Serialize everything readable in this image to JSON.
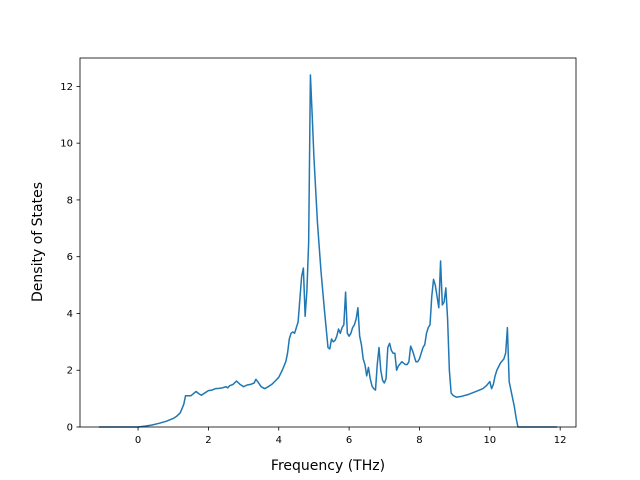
{
  "chart_data": {
    "type": "line",
    "title": "",
    "xlabel": "Frequency (THz)",
    "ylabel": "Density of States",
    "xlim": [
      -1.65,
      12.45
    ],
    "ylim": [
      0,
      13
    ],
    "xticks": [
      0,
      2,
      4,
      6,
      8,
      10,
      12
    ],
    "yticks": [
      0,
      2,
      4,
      6,
      8,
      10,
      12
    ],
    "grid": false,
    "legend": "none",
    "line_color": "#1f77b4",
    "series": [
      {
        "name": "",
        "x": [
          -1.1,
          -0.5,
          0.0,
          0.2,
          0.4,
          0.6,
          0.8,
          1.0,
          1.1,
          1.2,
          1.3,
          1.35,
          1.42,
          1.5,
          1.6,
          1.65,
          1.72,
          1.8,
          1.9,
          2.0,
          2.1,
          2.2,
          2.3,
          2.4,
          2.45,
          2.5,
          2.55,
          2.6,
          2.7,
          2.8,
          2.9,
          3.0,
          3.1,
          3.2,
          3.3,
          3.35,
          3.4,
          3.5,
          3.6,
          3.7,
          3.8,
          3.9,
          4.0,
          4.1,
          4.2,
          4.25,
          4.3,
          4.35,
          4.4,
          4.45,
          4.5,
          4.55,
          4.6,
          4.65,
          4.7,
          4.75,
          4.8,
          4.85,
          4.9,
          4.95,
          5.0,
          5.1,
          5.2,
          5.3,
          5.4,
          5.45,
          5.5,
          5.55,
          5.6,
          5.65,
          5.7,
          5.75,
          5.8,
          5.85,
          5.9,
          5.95,
          6.0,
          6.05,
          6.1,
          6.15,
          6.2,
          6.25,
          6.3,
          6.35,
          6.4,
          6.45,
          6.5,
          6.55,
          6.6,
          6.65,
          6.7,
          6.75,
          6.8,
          6.85,
          6.9,
          6.95,
          7.0,
          7.05,
          7.1,
          7.15,
          7.2,
          7.25,
          7.3,
          7.35,
          7.4,
          7.5,
          7.6,
          7.65,
          7.7,
          7.75,
          7.8,
          7.85,
          7.9,
          7.95,
          8.0,
          8.05,
          8.1,
          8.15,
          8.2,
          8.25,
          8.3,
          8.35,
          8.4,
          8.45,
          8.5,
          8.55,
          8.6,
          8.65,
          8.7,
          8.75,
          8.8,
          8.85,
          8.9,
          8.95,
          9.0,
          9.05,
          9.1,
          9.2,
          9.4,
          9.6,
          9.8,
          9.9,
          10.0,
          10.05,
          10.1,
          10.15,
          10.2,
          10.3,
          10.4,
          10.45,
          10.5,
          10.55,
          10.6,
          10.65,
          10.7,
          10.75,
          10.8,
          11.0,
          11.5,
          11.9
        ],
        "y": [
          0.0,
          0.0,
          0.0,
          0.03,
          0.07,
          0.13,
          0.2,
          0.3,
          0.38,
          0.5,
          0.8,
          1.1,
          1.1,
          1.1,
          1.2,
          1.25,
          1.18,
          1.12,
          1.2,
          1.28,
          1.3,
          1.35,
          1.36,
          1.38,
          1.4,
          1.42,
          1.38,
          1.45,
          1.5,
          1.62,
          1.5,
          1.42,
          1.48,
          1.5,
          1.55,
          1.68,
          1.6,
          1.42,
          1.35,
          1.42,
          1.5,
          1.62,
          1.75,
          2.0,
          2.3,
          2.6,
          3.1,
          3.3,
          3.35,
          3.3,
          3.5,
          3.7,
          4.5,
          5.3,
          5.6,
          3.9,
          4.8,
          6.5,
          12.4,
          11.0,
          9.5,
          7.2,
          5.5,
          4.1,
          2.8,
          2.75,
          3.1,
          3.0,
          3.05,
          3.2,
          3.45,
          3.3,
          3.5,
          3.6,
          4.75,
          3.3,
          3.2,
          3.3,
          3.5,
          3.6,
          3.8,
          4.2,
          3.2,
          2.9,
          2.4,
          2.2,
          1.8,
          2.1,
          1.7,
          1.45,
          1.35,
          1.3,
          2.2,
          2.8,
          2.0,
          1.65,
          1.55,
          1.7,
          2.8,
          2.95,
          2.7,
          2.6,
          2.6,
          2.0,
          2.15,
          2.3,
          2.2,
          2.2,
          2.3,
          2.85,
          2.7,
          2.5,
          2.3,
          2.3,
          2.4,
          2.6,
          2.8,
          2.9,
          3.3,
          3.5,
          3.6,
          4.6,
          5.2,
          5.0,
          4.6,
          4.2,
          5.85,
          4.3,
          4.4,
          4.9,
          3.8,
          2.0,
          1.2,
          1.12,
          1.08,
          1.05,
          1.06,
          1.08,
          1.15,
          1.25,
          1.35,
          1.45,
          1.6,
          1.35,
          1.5,
          1.8,
          2.0,
          2.25,
          2.4,
          2.6,
          3.5,
          1.6,
          1.3,
          1.0,
          0.7,
          0.3,
          0.0,
          0.0,
          0.0,
          0.0
        ]
      }
    ]
  }
}
